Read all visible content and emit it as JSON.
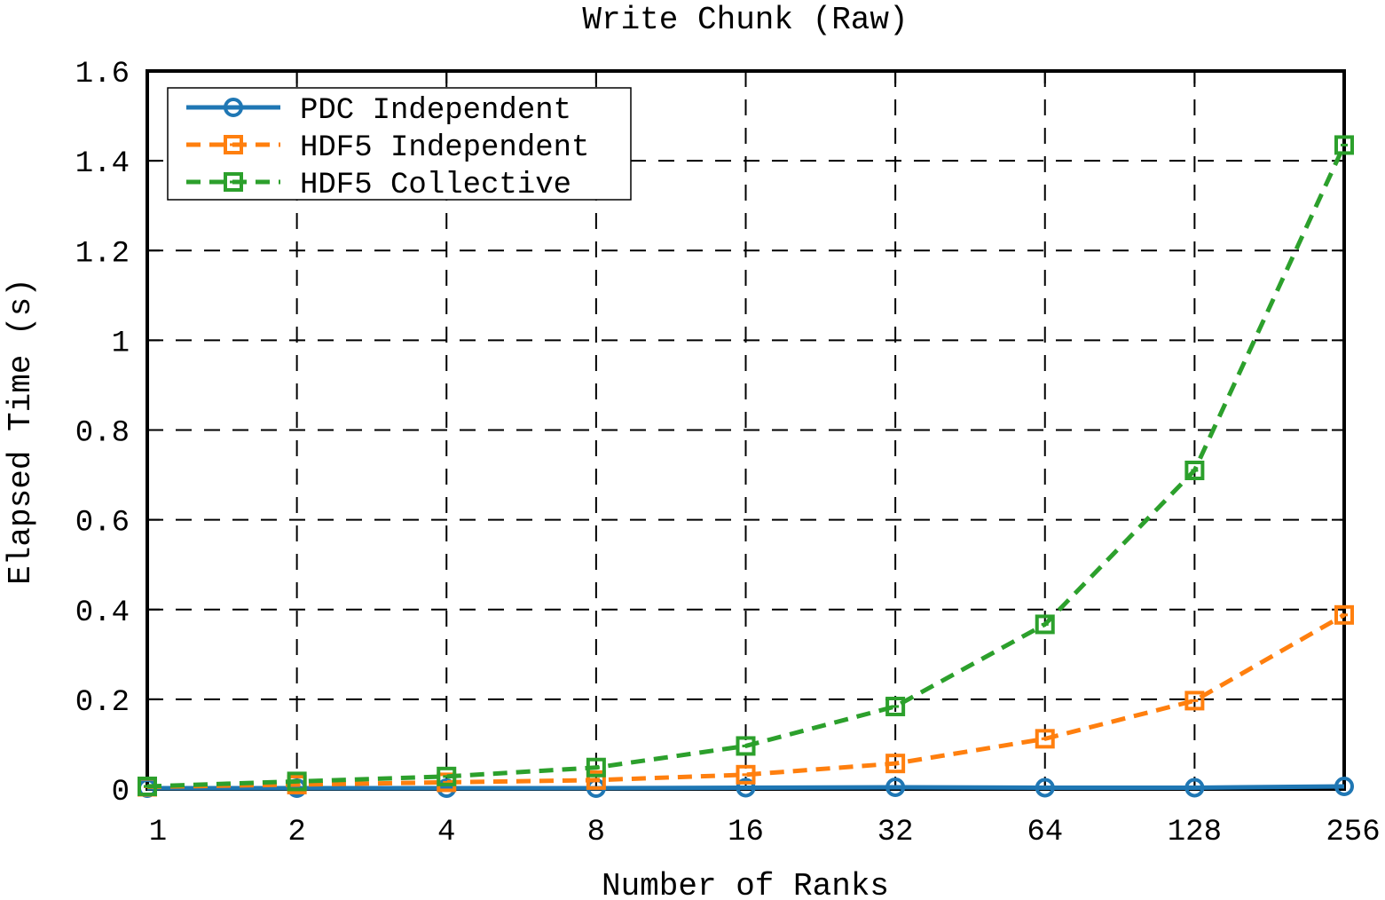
{
  "chart_data": {
    "type": "line",
    "title": "Write Chunk (Raw)",
    "xlabel": "Number of Ranks",
    "ylabel": "Elapsed Time (s)",
    "categories": [
      "1",
      "2",
      "4",
      "8",
      "16",
      "32",
      "64",
      "128",
      "256"
    ],
    "ylim": [
      0,
      1.6
    ],
    "yticks": [
      "0",
      "0.2",
      "0.4",
      "0.6",
      "0.8",
      "1",
      "1.2",
      "1.4",
      "1.6"
    ],
    "grid": true,
    "legend_position": "top-left",
    "series": [
      {
        "name": "PDC Independent",
        "values": [
          0.002,
          0.002,
          0.002,
          0.002,
          0.003,
          0.004,
          0.003,
          0.003,
          0.006
        ],
        "color": "#1f77b4",
        "dash": "solid",
        "marker": "circle"
      },
      {
        "name": "HDF5 Independent",
        "values": [
          0.005,
          0.01,
          0.015,
          0.02,
          0.032,
          0.057,
          0.112,
          0.197,
          0.388
        ],
        "color": "#ff7f0e",
        "dash": "dashed",
        "marker": "square"
      },
      {
        "name": "HDF5 Collective",
        "values": [
          0.006,
          0.017,
          0.028,
          0.048,
          0.096,
          0.184,
          0.367,
          0.71,
          1.435
        ],
        "color": "#2ca02c",
        "dash": "dashed",
        "marker": "square"
      }
    ]
  }
}
